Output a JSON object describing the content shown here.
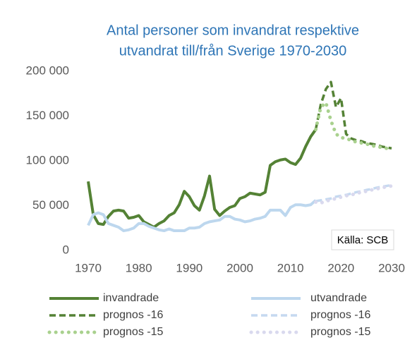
{
  "chart_data": {
    "type": "line",
    "title": [
      "Antal personer som invandrat respektive",
      "utvandrat till/från Sverige 1970-2030"
    ],
    "annotation": "Källa: SCB",
    "xlim": [
      1970,
      2030
    ],
    "xticks": [
      1970,
      1980,
      1990,
      2000,
      2010,
      2020,
      2030
    ],
    "ylim": [
      0,
      200000
    ],
    "yticks": [
      0,
      {
        "value": 50000,
        "label": "50 000"
      },
      {
        "value": 100000,
        "label": "100 000"
      },
      {
        "value": 150000,
        "label": "150 000"
      },
      {
        "value": 200000,
        "label": "200 000"
      }
    ],
    "grid": false,
    "series": [
      {
        "name": "invandrade",
        "color": "#548235",
        "dash": "solid",
        "x": [
          1970,
          1971,
          1972,
          1973,
          1974,
          1975,
          1976,
          1977,
          1978,
          1979,
          1980,
          1981,
          1982,
          1983,
          1984,
          1985,
          1986,
          1987,
          1988,
          1989,
          1990,
          1991,
          1992,
          1993,
          1994,
          1995,
          1996,
          1997,
          1998,
          1999,
          2000,
          2001,
          2002,
          2003,
          2004,
          2005,
          2006,
          2007,
          2008,
          2009,
          2010,
          2011,
          2012,
          2013,
          2014,
          2015
        ],
        "values": [
          77000,
          40000,
          30000,
          29000,
          38000,
          44000,
          45000,
          44000,
          36000,
          37000,
          39000,
          32000,
          29000,
          26000,
          30000,
          33000,
          39000,
          42000,
          51000,
          66000,
          60000,
          50000,
          45000,
          61000,
          83000,
          46000,
          39000,
          44000,
          48000,
          50000,
          58000,
          60000,
          64000,
          63000,
          62000,
          65000,
          95000,
          99000,
          101000,
          102000,
          98000,
          96000,
          103000,
          116000,
          127000,
          135000
        ]
      },
      {
        "name": "utvandrade",
        "color": "#bdd7ee",
        "dash": "solid",
        "x": [
          1970,
          1971,
          1972,
          1973,
          1974,
          1975,
          1976,
          1977,
          1978,
          1979,
          1980,
          1981,
          1982,
          1983,
          1984,
          1985,
          1986,
          1987,
          1988,
          1989,
          1990,
          1991,
          1992,
          1993,
          1994,
          1995,
          1996,
          1997,
          1998,
          1999,
          2000,
          2001,
          2002,
          2003,
          2004,
          2005,
          2006,
          2007,
          2008,
          2009,
          2010,
          2011,
          2012,
          2013,
          2014,
          2015
        ],
        "values": [
          28000,
          40000,
          42000,
          40000,
          30000,
          28000,
          26000,
          22000,
          23000,
          25000,
          30000,
          30000,
          27000,
          25000,
          23000,
          22000,
          24000,
          22000,
          22000,
          22000,
          25000,
          25000,
          26000,
          30000,
          32000,
          33000,
          34000,
          38000,
          38000,
          35000,
          34000,
          32000,
          33000,
          35000,
          36000,
          38000,
          45000,
          45000,
          45000,
          39000,
          48000,
          51000,
          51000,
          50000,
          51000,
          56000
        ]
      },
      {
        "name": "prognos -16",
        "color": "#548235",
        "dash": "dashed",
        "x": [
          2015,
          2016,
          2017,
          2018,
          2019,
          2020,
          2021,
          2022,
          2023,
          2024,
          2025,
          2026,
          2027,
          2028,
          2029,
          2030
        ],
        "values": [
          135000,
          163000,
          180000,
          188000,
          160000,
          170000,
          130000,
          125000,
          123000,
          122000,
          120000,
          119000,
          118000,
          116000,
          115000,
          114000
        ]
      },
      {
        "name": "prognos -16",
        "color": "#c5d9f0",
        "dash": "dashed",
        "x": [
          2015,
          2016,
          2017,
          2018,
          2019,
          2020,
          2021,
          2022,
          2023,
          2024,
          2025,
          2026,
          2027,
          2028,
          2029,
          2030
        ],
        "values": [
          55000,
          56000,
          57000,
          58000,
          60000,
          61000,
          62000,
          63500,
          65000,
          66000,
          67500,
          68500,
          70000,
          71000,
          72000,
          73000
        ]
      },
      {
        "name": "prognos -15",
        "color": "#a9d18e",
        "dash": "dotted",
        "x": [
          2015,
          2016,
          2017,
          2018,
          2019,
          2020,
          2021,
          2022,
          2023,
          2024,
          2025,
          2026,
          2027,
          2028,
          2029,
          2030
        ],
        "values": [
          135000,
          160000,
          165000,
          145000,
          130000,
          126000,
          125000,
          123000,
          121000,
          120000,
          119000,
          117000,
          116000,
          115000,
          114000,
          113000
        ]
      },
      {
        "name": "prognos -15",
        "color": "#d9d9ee",
        "dash": "dotted",
        "x": [
          2015,
          2016,
          2017,
          2018,
          2019,
          2020,
          2021,
          2022,
          2023,
          2024,
          2025,
          2026,
          2027,
          2028,
          2029,
          2030
        ],
        "values": [
          54000,
          53000,
          55000,
          56500,
          58000,
          59500,
          61000,
          62000,
          63500,
          65000,
          66000,
          67500,
          68500,
          70000,
          71000,
          72000
        ]
      }
    ]
  }
}
